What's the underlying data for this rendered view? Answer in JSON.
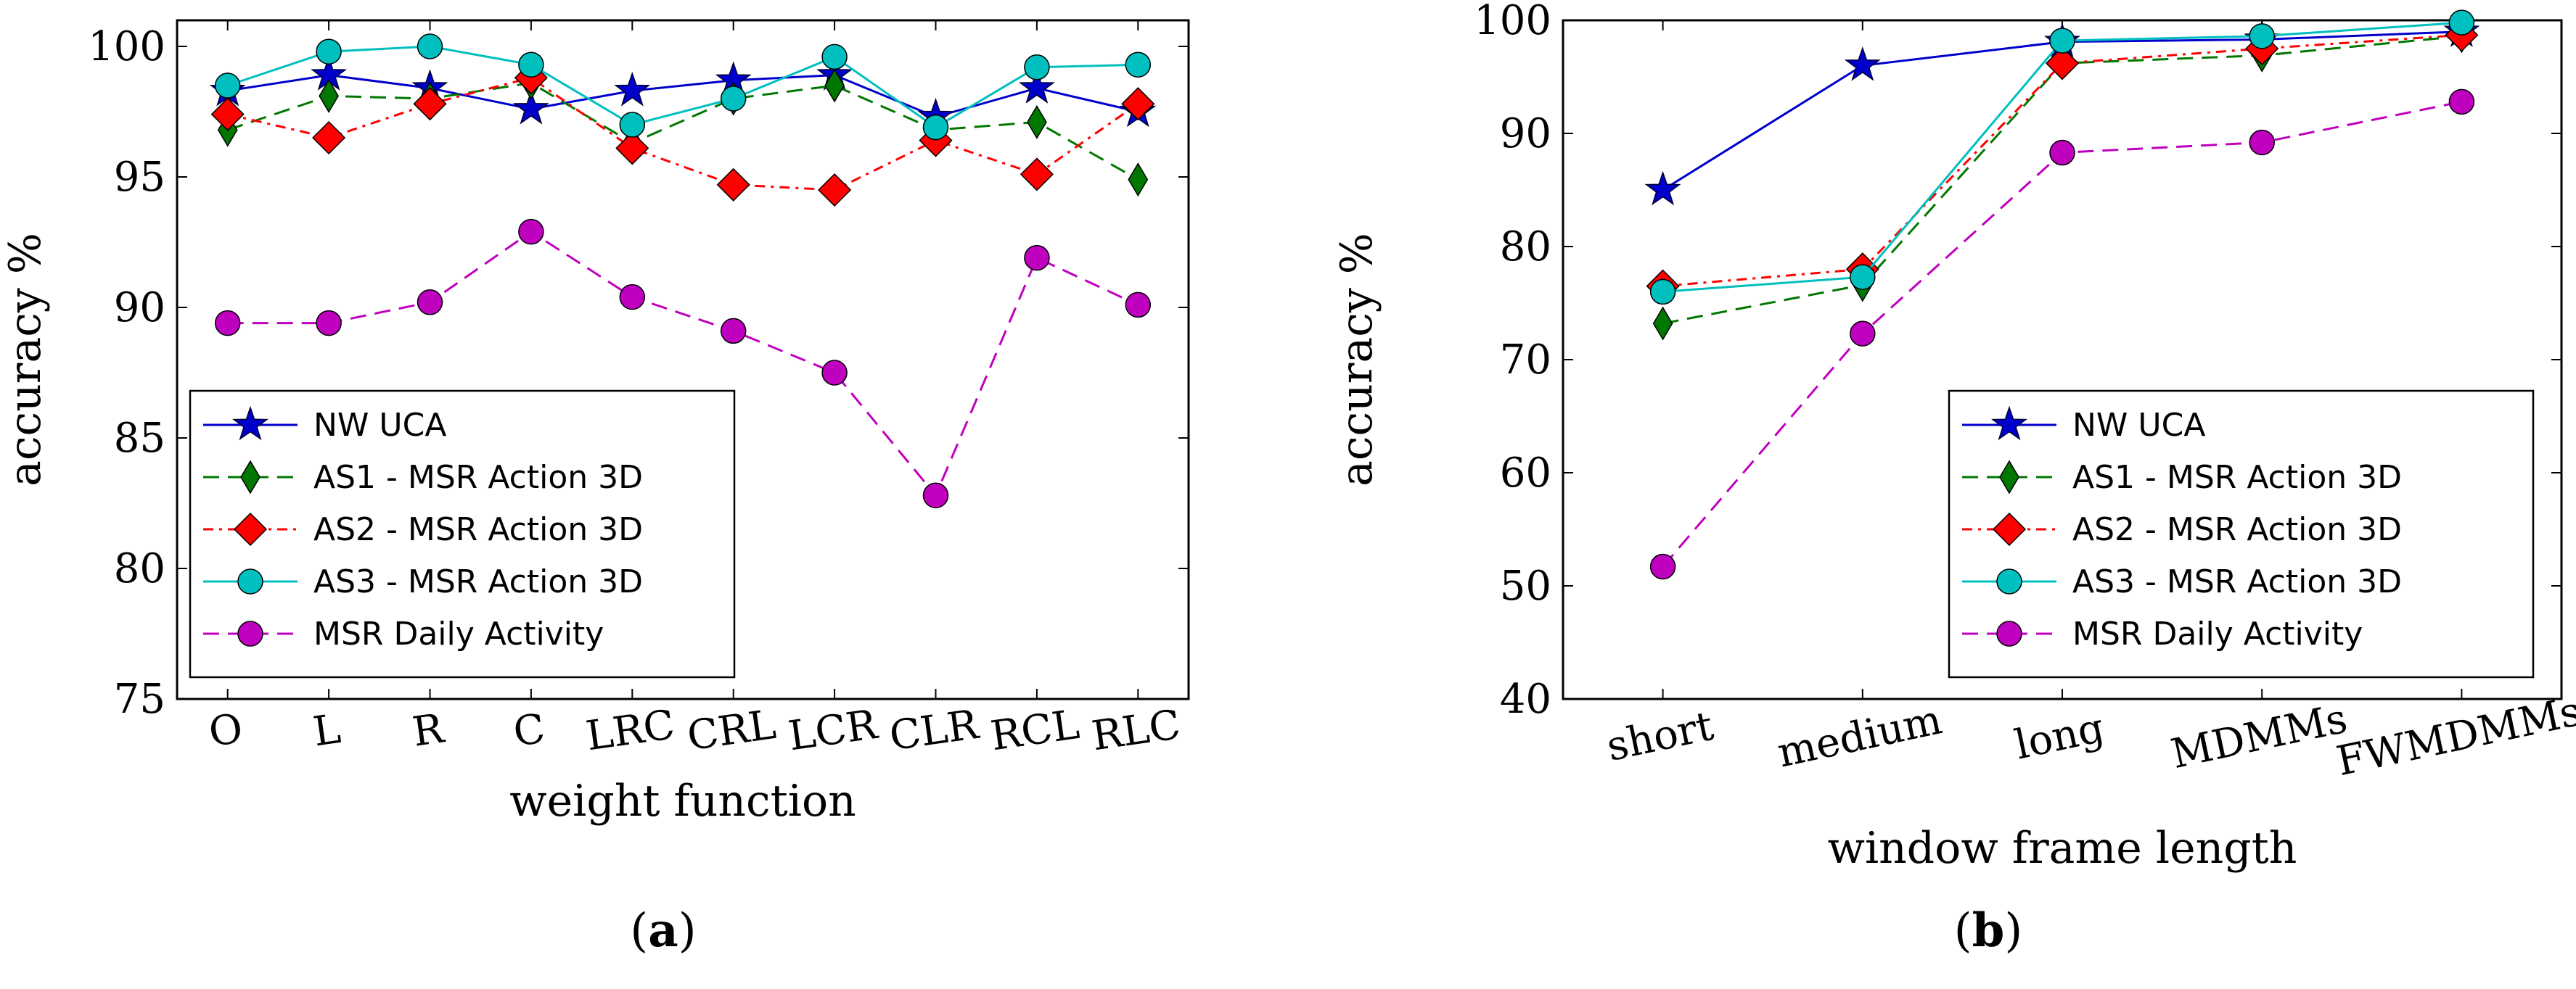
{
  "chart_data": [
    {
      "id": "a",
      "type": "line",
      "caption_open": "(",
      "caption_letter": "a",
      "caption_close": ")",
      "xlabel": "weight function",
      "ylabel": "accuracy %",
      "ylim": [
        75,
        101
      ],
      "yticks": [
        75,
        80,
        85,
        90,
        95,
        100
      ],
      "categories": [
        "O",
        "L",
        "R",
        "C",
        "LRC",
        "CRL",
        "LCR",
        "CLR",
        "RCL",
        "RLC"
      ],
      "xtick_rotation": -8,
      "legend_position": "lower-left",
      "series": [
        {
          "name": "NW UCA",
          "color": "#0000cc",
          "marker": "star",
          "line": "solid",
          "values": [
            98.3,
            98.9,
            98.4,
            97.6,
            98.3,
            98.7,
            98.9,
            97.3,
            98.4,
            97.5
          ]
        },
        {
          "name": "AS1 - MSR Action 3D",
          "color": "#007700",
          "marker": "thin_diamond",
          "line": "dashed",
          "values": [
            96.8,
            98.1,
            98.0,
            98.6,
            96.3,
            98.0,
            98.5,
            96.8,
            97.1,
            94.9
          ]
        },
        {
          "name": "AS2 - MSR Action 3D",
          "color": "#ff0000",
          "marker": "diamond",
          "line": "dashdot",
          "values": [
            97.4,
            96.5,
            97.8,
            98.8,
            96.1,
            94.7,
            94.5,
            96.4,
            95.1,
            97.8
          ]
        },
        {
          "name": "AS3 - MSR Action 3D",
          "color": "#00bfbf",
          "marker": "circle",
          "line": "solid",
          "values": [
            98.5,
            99.8,
            100.0,
            99.3,
            97.0,
            98.0,
            99.6,
            96.9,
            99.2,
            99.3
          ]
        },
        {
          "name": "MSR Daily Activity",
          "color": "#bf00bf",
          "marker": "circle",
          "line": "dashed",
          "values": [
            89.4,
            89.4,
            90.2,
            92.9,
            90.4,
            89.1,
            87.5,
            82.8,
            91.9,
            90.1
          ]
        }
      ]
    },
    {
      "id": "b",
      "type": "line",
      "caption_open": "(",
      "caption_letter": "b",
      "caption_close": ")",
      "xlabel": "window frame length",
      "ylabel": "accuracy %",
      "ylim": [
        40,
        100
      ],
      "yticks": [
        40,
        50,
        60,
        70,
        80,
        90,
        100
      ],
      "categories": [
        "short",
        "medium",
        "long",
        "MDMMs",
        "FWMDMMs"
      ],
      "xtick_rotation": -12,
      "legend_position": "lower-right",
      "series": [
        {
          "name": "NW UCA",
          "color": "#0000cc",
          "marker": "star",
          "line": "solid",
          "values": [
            85.0,
            96.0,
            98.1,
            98.3,
            99.0
          ]
        },
        {
          "name": "AS1 - MSR Action 3D",
          "color": "#007700",
          "marker": "thin_diamond",
          "line": "dashed",
          "values": [
            73.2,
            76.6,
            96.2,
            96.9,
            98.6
          ]
        },
        {
          "name": "AS2 - MSR Action 3D",
          "color": "#ff0000",
          "marker": "diamond",
          "line": "dashdot",
          "values": [
            76.5,
            78.0,
            96.2,
            97.5,
            98.7
          ]
        },
        {
          "name": "AS3 - MSR Action 3D",
          "color": "#00bfbf",
          "marker": "circle",
          "line": "solid",
          "values": [
            76.0,
            77.3,
            98.2,
            98.6,
            99.8
          ]
        },
        {
          "name": "MSR Daily Activity",
          "color": "#bf00bf",
          "marker": "circle",
          "line": "dashed",
          "values": [
            51.7,
            72.3,
            88.3,
            89.2,
            92.8
          ]
        }
      ]
    }
  ]
}
